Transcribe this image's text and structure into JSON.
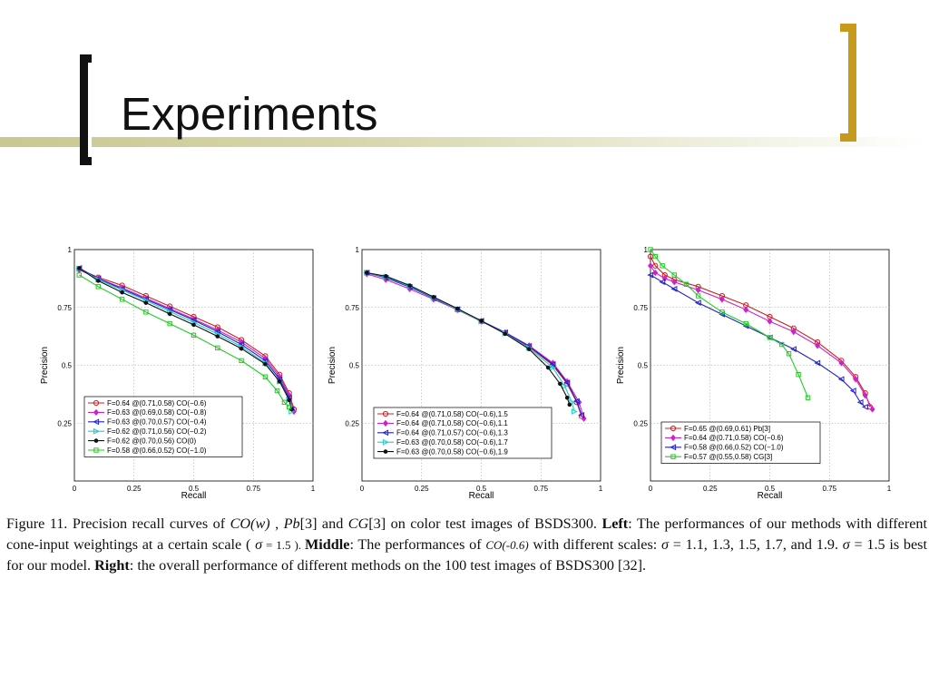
{
  "slide": {
    "title": "Experiments"
  },
  "caption": {
    "fig": "Figure 11. Precision recall curves of ",
    "co_w": "CO(w)",
    "t1": " , ",
    "pb": "Pb",
    "t2": "[3] and ",
    "cg": "CG",
    "t3": "[3] on color test images of BSDS300. ",
    "left_label": "Left",
    "t4": ": The performances of our methods with different cone-input weightings at a certain scale ( ",
    "sigma1": "σ",
    "t5": " = 1.5 ). ",
    "middle_label": "Middle",
    "t6": ": The performances of ",
    "co06": "CO(-0.6)",
    "t7": " with different scales: ",
    "sigma2": "σ",
    "t8": " = 1.1, 1.3, 1.5, 1.7, and 1.9. ",
    "sigma3": "σ",
    "t9": " = 1.5 is best for our model. ",
    "right_label": "Right",
    "t10": ": the overall performance of different methods on the 100 test images of BSDS300 [32]."
  },
  "chart_data": [
    {
      "type": "line",
      "xlabel": "Recall",
      "ylabel": "Precision",
      "xlim": [
        0,
        1
      ],
      "ylim": [
        0,
        1
      ],
      "xticks": [
        "0",
        "0.25",
        "0.5",
        "0.75",
        "1"
      ],
      "yticks": [
        "1",
        "0.75",
        "0.5",
        "0.25"
      ],
      "grid": true,
      "legend_position": "bottom-left",
      "series": [
        {
          "name": "F=0.64 @(0.71,0.58) CO(−0.6)",
          "color": "#d02020",
          "marker": "circle",
          "x": [
            0.02,
            0.1,
            0.2,
            0.3,
            0.4,
            0.5,
            0.6,
            0.7,
            0.8,
            0.86,
            0.9,
            0.92
          ],
          "y": [
            0.915,
            0.88,
            0.845,
            0.8,
            0.755,
            0.71,
            0.665,
            0.61,
            0.54,
            0.46,
            0.38,
            0.31
          ]
        },
        {
          "name": "F=0.63 @(0.69,0.58) CO(−0.8)",
          "color": "#cc22cc",
          "marker": "diamond",
          "x": [
            0.02,
            0.1,
            0.2,
            0.3,
            0.4,
            0.5,
            0.6,
            0.7,
            0.8,
            0.86,
            0.9,
            0.92
          ],
          "y": [
            0.912,
            0.875,
            0.835,
            0.79,
            0.745,
            0.7,
            0.652,
            0.6,
            0.53,
            0.45,
            0.37,
            0.3
          ]
        },
        {
          "name": "F=0.63 @(0.70,0.57) CO(−0.4)",
          "color": "#2222cc",
          "marker": "triangle-left",
          "x": [
            0.02,
            0.1,
            0.2,
            0.3,
            0.4,
            0.5,
            0.6,
            0.7,
            0.8,
            0.86,
            0.9,
            0.91
          ],
          "y": [
            0.92,
            0.875,
            0.83,
            0.785,
            0.74,
            0.695,
            0.645,
            0.59,
            0.52,
            0.44,
            0.36,
            0.31
          ]
        },
        {
          "name": "F=0.62 @(0.71,0.56) CO(−0.2)",
          "color": "#22cccc",
          "marker": "triangle-right",
          "x": [
            0.02,
            0.1,
            0.2,
            0.3,
            0.4,
            0.5,
            0.6,
            0.7,
            0.8,
            0.86,
            0.9,
            0.91
          ],
          "y": [
            0.918,
            0.87,
            0.825,
            0.78,
            0.732,
            0.685,
            0.635,
            0.58,
            0.51,
            0.43,
            0.35,
            0.3
          ]
        },
        {
          "name": "F=0.62 @(0.70,0.56) CO(0)",
          "color": "#111111",
          "marker": "dot",
          "x": [
            0.02,
            0.1,
            0.2,
            0.3,
            0.4,
            0.5,
            0.6,
            0.7,
            0.8,
            0.86,
            0.9,
            0.91
          ],
          "y": [
            0.92,
            0.865,
            0.815,
            0.77,
            0.722,
            0.675,
            0.625,
            0.572,
            0.505,
            0.43,
            0.35,
            0.31
          ]
        },
        {
          "name": "F=0.58 @(0.66,0.52) CO(−1.0)",
          "color": "#22cc22",
          "marker": "square",
          "x": [
            0.02,
            0.1,
            0.2,
            0.3,
            0.4,
            0.5,
            0.6,
            0.7,
            0.8,
            0.85,
            0.88,
            0.9
          ],
          "y": [
            0.89,
            0.84,
            0.785,
            0.73,
            0.68,
            0.63,
            0.575,
            0.52,
            0.45,
            0.39,
            0.34,
            0.32
          ]
        }
      ]
    },
    {
      "type": "line",
      "xlabel": "Recall",
      "ylabel": "Precision",
      "xlim": [
        0,
        1
      ],
      "ylim": [
        0,
        1
      ],
      "xticks": [
        "0",
        "0.25",
        "0.5",
        "0.75",
        "1"
      ],
      "yticks": [
        "1",
        "0.75",
        "0.5",
        "0.25"
      ],
      "grid": true,
      "legend_position": "bottom-left",
      "series": [
        {
          "name": "F=0.64 @(0.71,0.58) CO(−0.6),1.5",
          "color": "#d02020",
          "marker": "circle",
          "x": [
            0.02,
            0.1,
            0.2,
            0.3,
            0.4,
            0.5,
            0.6,
            0.7,
            0.8,
            0.86,
            0.9,
            0.92
          ],
          "y": [
            0.9,
            0.88,
            0.84,
            0.79,
            0.74,
            0.69,
            0.64,
            0.58,
            0.5,
            0.42,
            0.34,
            0.28
          ]
        },
        {
          "name": "F=0.64 @(0.71,0.58) CO(−0.6),1.1",
          "color": "#cc22cc",
          "marker": "diamond",
          "x": [
            0.02,
            0.1,
            0.2,
            0.3,
            0.4,
            0.5,
            0.6,
            0.7,
            0.8,
            0.86,
            0.91,
            0.93
          ],
          "y": [
            0.895,
            0.87,
            0.83,
            0.785,
            0.74,
            0.69,
            0.642,
            0.585,
            0.51,
            0.43,
            0.34,
            0.27
          ]
        },
        {
          "name": "F=0.64 @(0.71,0.57) CO(−0.6),1.3",
          "color": "#2222cc",
          "marker": "triangle-left",
          "x": [
            0.02,
            0.1,
            0.2,
            0.3,
            0.4,
            0.5,
            0.6,
            0.7,
            0.8,
            0.86,
            0.9,
            0.92
          ],
          "y": [
            0.9,
            0.878,
            0.838,
            0.79,
            0.742,
            0.692,
            0.642,
            0.583,
            0.505,
            0.425,
            0.345,
            0.285
          ]
        },
        {
          "name": "F=0.63 @(0.70,0.58) CO(−0.6),1.7",
          "color": "#22cccc",
          "marker": "triangle-right",
          "x": [
            0.02,
            0.1,
            0.2,
            0.3,
            0.4,
            0.5,
            0.6,
            0.7,
            0.8,
            0.85,
            0.88,
            0.89
          ],
          "y": [
            0.9,
            0.882,
            0.842,
            0.792,
            0.742,
            0.69,
            0.638,
            0.575,
            0.49,
            0.41,
            0.34,
            0.3
          ]
        },
        {
          "name": "F=0.63 @(0.70,0.58) CO(−0.6),1.9",
          "color": "#111111",
          "marker": "dot",
          "x": [
            0.02,
            0.1,
            0.2,
            0.3,
            0.4,
            0.5,
            0.6,
            0.7,
            0.78,
            0.83,
            0.86,
            0.87
          ],
          "y": [
            0.9,
            0.885,
            0.845,
            0.795,
            0.745,
            0.692,
            0.636,
            0.57,
            0.49,
            0.42,
            0.36,
            0.33
          ]
        }
      ]
    },
    {
      "type": "line",
      "xlabel": "Recall",
      "ylabel": "Precision",
      "xlim": [
        0,
        1
      ],
      "ylim": [
        0,
        1
      ],
      "xticks": [
        "0",
        "0.25",
        "0.5",
        "0.75",
        "1"
      ],
      "yticks": [
        "1",
        "0.75",
        "0.5",
        "0.25"
      ],
      "grid": true,
      "legend_position": "bottom-left",
      "series": [
        {
          "name": "F=0.65 @(0.69,0.61) Pb[3]",
          "color": "#d02020",
          "marker": "circle",
          "x": [
            0,
            0.02,
            0.06,
            0.1,
            0.2,
            0.3,
            0.4,
            0.5,
            0.6,
            0.7,
            0.8,
            0.86,
            0.9,
            0.92
          ],
          "y": [
            0.97,
            0.93,
            0.89,
            0.87,
            0.84,
            0.8,
            0.76,
            0.71,
            0.66,
            0.6,
            0.52,
            0.45,
            0.38,
            0.32
          ]
        },
        {
          "name": "F=0.64 @(0.71,0.58) CO(−0.6)",
          "color": "#cc22cc",
          "marker": "diamond",
          "x": [
            0,
            0.02,
            0.06,
            0.1,
            0.2,
            0.3,
            0.4,
            0.5,
            0.6,
            0.7,
            0.8,
            0.86,
            0.9,
            0.93
          ],
          "y": [
            0.93,
            0.9,
            0.875,
            0.86,
            0.825,
            0.785,
            0.74,
            0.69,
            0.645,
            0.585,
            0.51,
            0.44,
            0.37,
            0.31
          ]
        },
        {
          "name": "F=0.58 @(0.66,0.52) CO(−1.0)",
          "color": "#2222cc",
          "marker": "triangle-left",
          "x": [
            0,
            0.05,
            0.1,
            0.2,
            0.3,
            0.4,
            0.5,
            0.6,
            0.7,
            0.8,
            0.85,
            0.88,
            0.9
          ],
          "y": [
            0.89,
            0.86,
            0.83,
            0.77,
            0.72,
            0.67,
            0.62,
            0.57,
            0.51,
            0.44,
            0.39,
            0.34,
            0.32
          ]
        },
        {
          "name": "F=0.57 @(0.55,0.58) CG[3]",
          "color": "#22cc22",
          "marker": "square",
          "x": [
            0,
            0.02,
            0.05,
            0.1,
            0.15,
            0.2,
            0.3,
            0.4,
            0.5,
            0.55,
            0.58,
            0.62,
            0.66
          ],
          "y": [
            1.0,
            0.97,
            0.93,
            0.89,
            0.85,
            0.8,
            0.73,
            0.68,
            0.62,
            0.59,
            0.55,
            0.46,
            0.36
          ]
        }
      ]
    }
  ]
}
